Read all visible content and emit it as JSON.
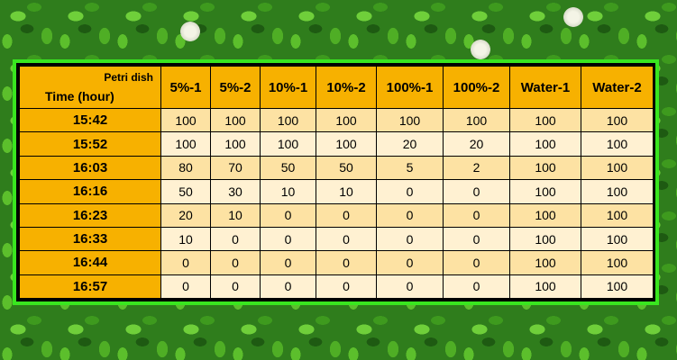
{
  "table": {
    "corner": {
      "top": "Petri dish",
      "bottom": "Time (hour)"
    },
    "columns": [
      "5%-1",
      "5%-2",
      "10%-1",
      "10%-2",
      "100%-1",
      "100%-2",
      "Water-1",
      "Water-2"
    ],
    "rows": [
      {
        "time": "15:42",
        "values": [
          100,
          100,
          100,
          100,
          100,
          100,
          100,
          100
        ]
      },
      {
        "time": "15:52",
        "values": [
          100,
          100,
          100,
          100,
          20,
          20,
          100,
          100
        ]
      },
      {
        "time": "16:03",
        "values": [
          80,
          70,
          50,
          50,
          5,
          2,
          100,
          100
        ]
      },
      {
        "time": "16:16",
        "values": [
          50,
          30,
          10,
          10,
          0,
          0,
          100,
          100
        ]
      },
      {
        "time": "16:23",
        "values": [
          20,
          10,
          0,
          0,
          0,
          0,
          100,
          100
        ]
      },
      {
        "time": "16:33",
        "values": [
          10,
          0,
          0,
          0,
          0,
          0,
          100,
          100
        ]
      },
      {
        "time": "16:44",
        "values": [
          0,
          0,
          0,
          0,
          0,
          0,
          100,
          100
        ]
      },
      {
        "time": "16:57",
        "values": [
          0,
          0,
          0,
          0,
          0,
          0,
          100,
          100
        ]
      }
    ]
  }
}
